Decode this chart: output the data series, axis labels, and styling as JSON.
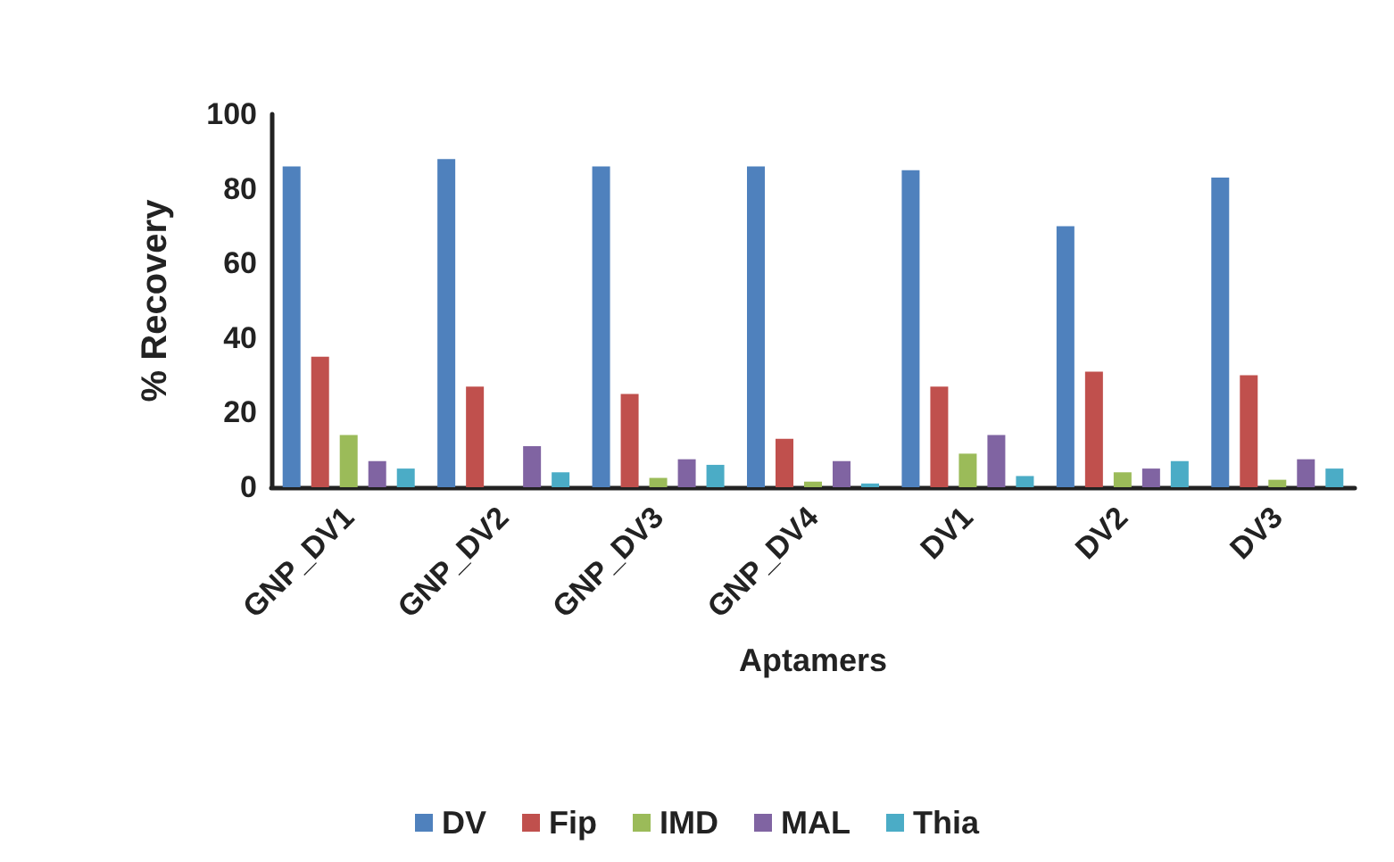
{
  "chart_data": {
    "type": "bar",
    "xlabel": "Aptamers",
    "ylabel": "% Recovery",
    "categories": [
      "GNP_DV1",
      "GNP_DV2",
      "GNP_DV3",
      "GNP_DV4",
      "DV1",
      "DV2",
      "DV3"
    ],
    "series": [
      {
        "name": "DV",
        "color": "#4f81bd",
        "values": [
          86,
          88,
          86,
          86,
          85,
          70,
          83
        ]
      },
      {
        "name": "Fip",
        "color": "#c0504d",
        "values": [
          35,
          27,
          25,
          13,
          27,
          31,
          30
        ]
      },
      {
        "name": "IMD",
        "color": "#9bbb59",
        "values": [
          14,
          0,
          2.5,
          1.5,
          9,
          4,
          2
        ]
      },
      {
        "name": "MAL",
        "color": "#8064a2",
        "values": [
          7,
          11,
          7.5,
          7,
          14,
          5,
          7.5
        ]
      },
      {
        "name": "Thia",
        "color": "#4bacc6",
        "values": [
          5,
          4,
          6,
          1,
          3,
          7,
          5
        ]
      }
    ],
    "ylim": [
      0,
      100
    ],
    "yticks": [
      0,
      20,
      40,
      60,
      80,
      100
    ],
    "grid": false,
    "legend": "bottom"
  }
}
